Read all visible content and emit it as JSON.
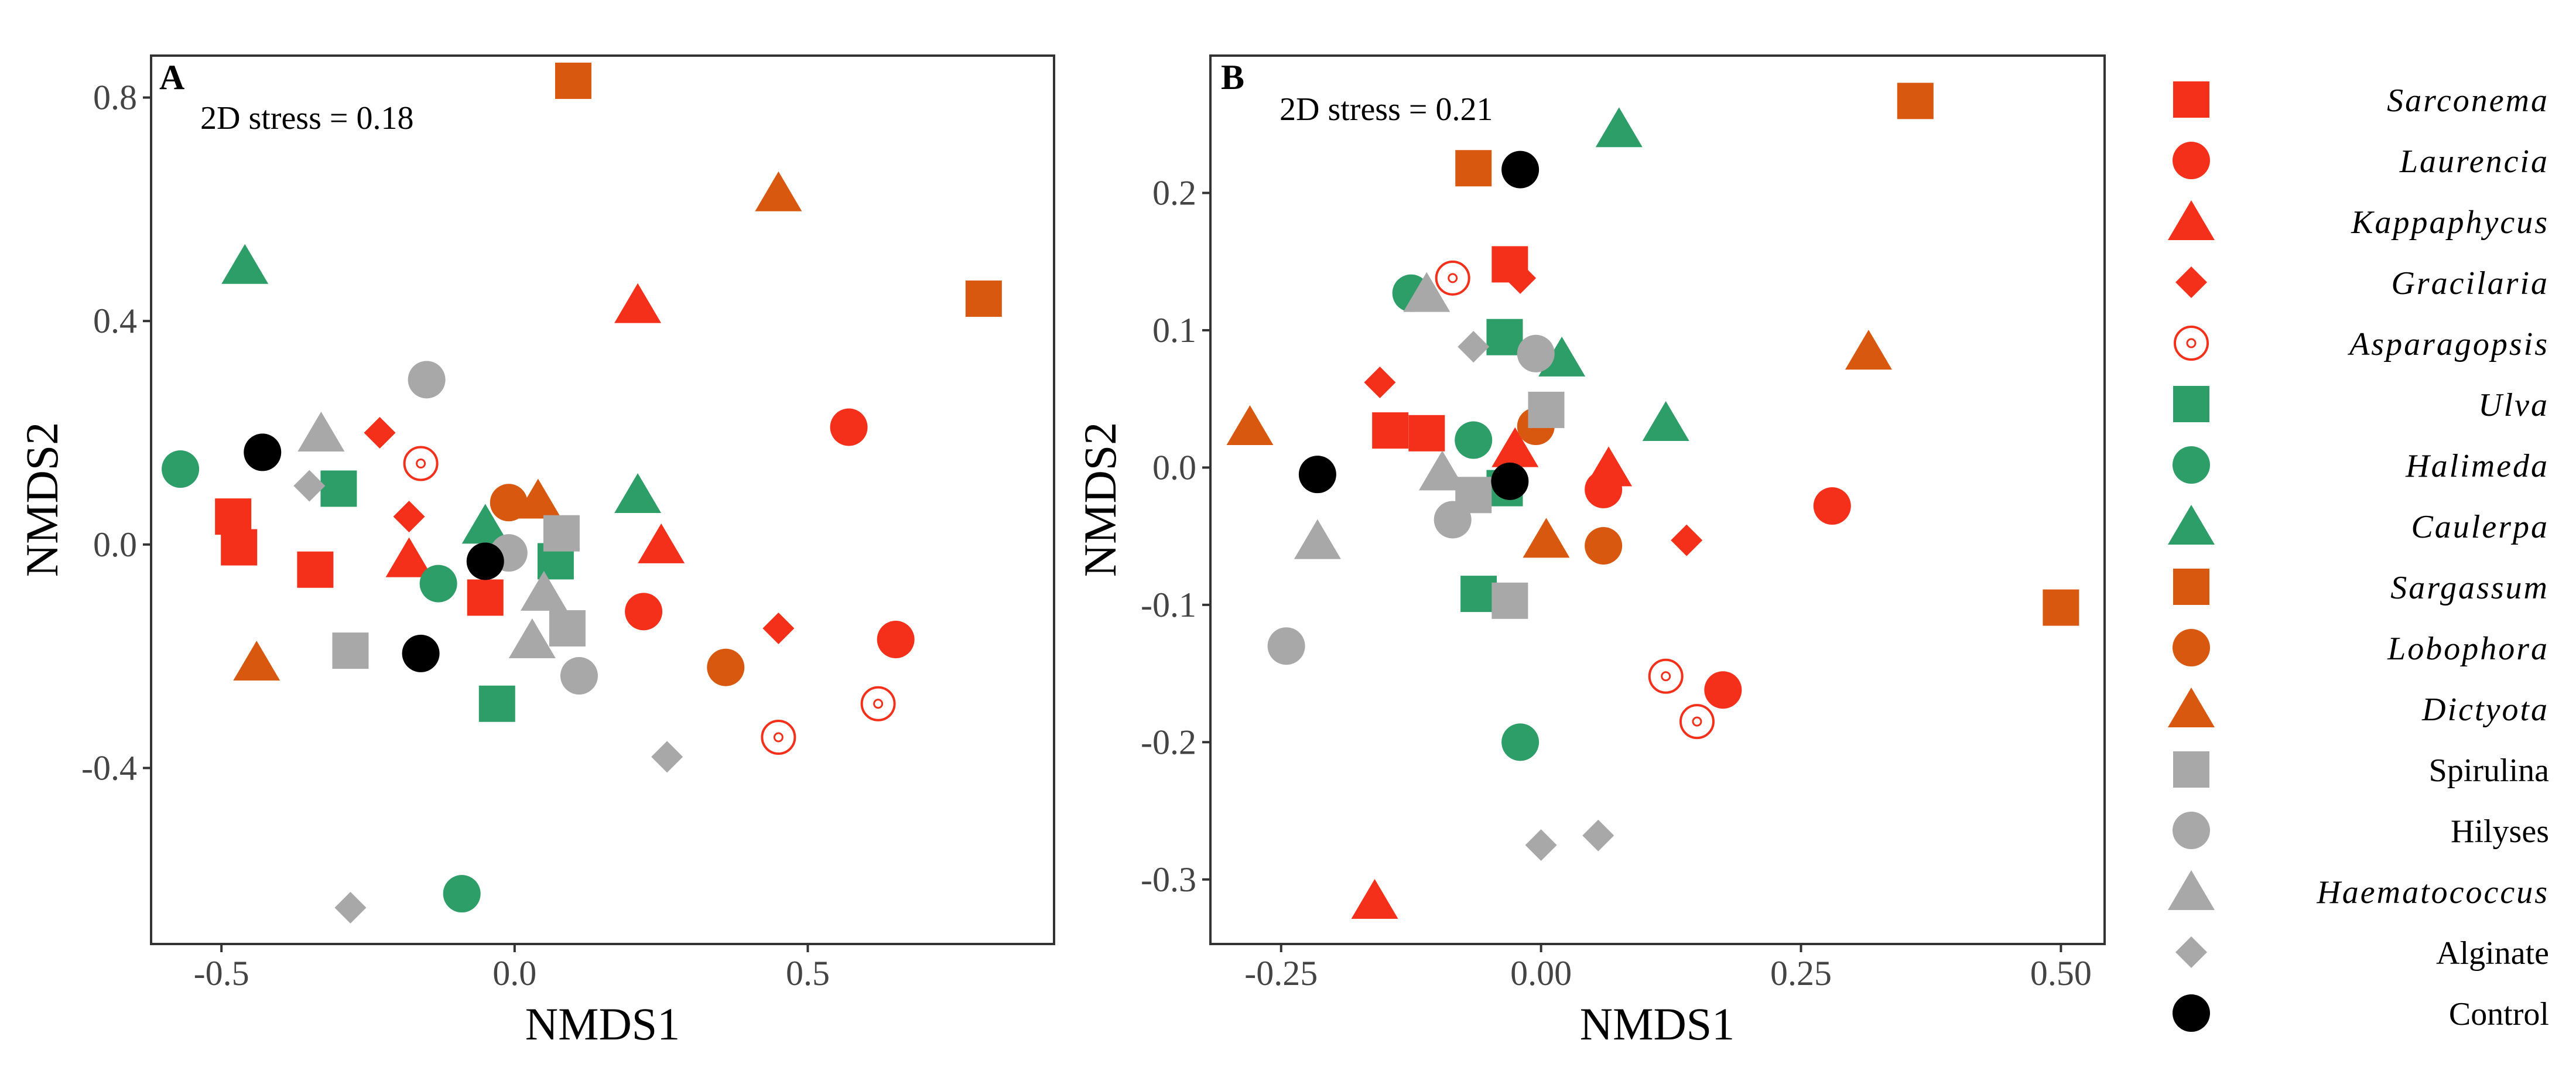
{
  "colors": {
    "red": "#F5301A",
    "green": "#2E9E68",
    "orange": "#D9580F",
    "grey": "#A8A8A8",
    "black": "#000000",
    "frame": "#333333"
  },
  "legend": {
    "entries": [
      {
        "key": "Sarconema",
        "label": "Sarconema",
        "shape": "square",
        "color": "red",
        "italic": true
      },
      {
        "key": "Laurencia",
        "label": "Laurencia",
        "shape": "circle",
        "color": "red",
        "italic": true
      },
      {
        "key": "Kappaphycus",
        "label": "Kappaphycus",
        "shape": "triangle",
        "color": "red",
        "italic": true
      },
      {
        "key": "Gracilaria",
        "label": "Gracilaria",
        "shape": "diamond",
        "color": "red",
        "italic": true
      },
      {
        "key": "Asparagopsis",
        "label": "Asparagopsis",
        "shape": "target",
        "color": "red",
        "italic": true
      },
      {
        "key": "Ulva",
        "label": "Ulva",
        "shape": "square",
        "color": "green",
        "italic": true
      },
      {
        "key": "Halimeda",
        "label": "Halimeda",
        "shape": "circle",
        "color": "green",
        "italic": true
      },
      {
        "key": "Caulerpa",
        "label": "Caulerpa",
        "shape": "triangle",
        "color": "green",
        "italic": true
      },
      {
        "key": "Sargassum",
        "label": "Sargassum",
        "shape": "square",
        "color": "orange",
        "italic": true
      },
      {
        "key": "Lobophora",
        "label": "Lobophora",
        "shape": "circle",
        "color": "orange",
        "italic": true
      },
      {
        "key": "Dictyota",
        "label": "Dictyota",
        "shape": "triangle",
        "color": "orange",
        "italic": true
      },
      {
        "key": "Spirulina",
        "label": "Spirulina",
        "shape": "square",
        "color": "grey",
        "italic": false
      },
      {
        "key": "Hilyses",
        "label": "Hilyses",
        "shape": "circle",
        "color": "grey",
        "italic": false
      },
      {
        "key": "Haematococcus",
        "label": "Haematococcus",
        "shape": "triangle",
        "color": "grey",
        "italic": true
      },
      {
        "key": "Alginate",
        "label": "Alginate",
        "shape": "diamond",
        "color": "grey",
        "italic": false
      },
      {
        "key": "Control",
        "label": "Control",
        "shape": "circle",
        "color": "black",
        "italic": false
      }
    ]
  },
  "chart_data": [
    {
      "type": "scatter",
      "panel_label": "A",
      "annotation": "2D stress = 0.18",
      "xlabel": "NMDS1",
      "ylabel": "NMDS2",
      "xlim": [
        -0.62,
        0.92
      ],
      "ylim": [
        -0.715,
        0.875
      ],
      "xticks": [
        -0.5,
        0.0,
        0.5
      ],
      "xtick_labels": [
        "-0.5",
        "0.0",
        "0.5"
      ],
      "yticks": [
        -0.4,
        0.0,
        0.4,
        0.8
      ],
      "ytick_labels": [
        "-0.4",
        "0.0",
        "0.4",
        "0.8"
      ],
      "series": [
        {
          "name": "Sarconema",
          "points": [
            [
              -0.48,
              0.05
            ],
            [
              -0.47,
              -0.005
            ],
            [
              -0.34,
              -0.045
            ],
            [
              -0.05,
              -0.095
            ]
          ]
        },
        {
          "name": "Laurencia",
          "points": [
            [
              0.57,
              0.21
            ],
            [
              0.22,
              -0.12
            ],
            [
              0.65,
              -0.17
            ]
          ]
        },
        {
          "name": "Kappaphycus",
          "points": [
            [
              0.21,
              0.43
            ],
            [
              0.25,
              -0.0
            ],
            [
              -0.18,
              -0.025
            ]
          ]
        },
        {
          "name": "Gracilaria",
          "points": [
            [
              -0.23,
              0.2
            ],
            [
              -0.18,
              0.05
            ],
            [
              0.45,
              -0.15
            ]
          ]
        },
        {
          "name": "Asparagopsis",
          "points": [
            [
              -0.16,
              0.145
            ],
            [
              0.62,
              -0.285
            ],
            [
              0.45,
              -0.345
            ]
          ]
        },
        {
          "name": "Ulva",
          "points": [
            [
              -0.3,
              0.1
            ],
            [
              0.07,
              -0.03
            ],
            [
              -0.03,
              -0.285
            ]
          ]
        },
        {
          "name": "Halimeda",
          "points": [
            [
              -0.57,
              0.135
            ],
            [
              -0.13,
              -0.07
            ],
            [
              -0.09,
              -0.625
            ]
          ]
        },
        {
          "name": "Caulerpa",
          "points": [
            [
              -0.46,
              0.5
            ],
            [
              0.21,
              0.09
            ],
            [
              -0.05,
              0.035
            ]
          ]
        },
        {
          "name": "Sargassum",
          "points": [
            [
              0.1,
              0.83
            ],
            [
              0.8,
              0.44
            ]
          ]
        },
        {
          "name": "Lobophora",
          "points": [
            [
              -0.01,
              0.075
            ],
            [
              0.36,
              -0.22
            ]
          ]
        },
        {
          "name": "Dictyota",
          "points": [
            [
              0.45,
              0.63
            ],
            [
              0.04,
              0.08
            ],
            [
              -0.44,
              -0.21
            ]
          ]
        },
        {
          "name": "Spirulina",
          "points": [
            [
              0.08,
              0.02
            ],
            [
              0.09,
              -0.15
            ],
            [
              -0.28,
              -0.19
            ]
          ]
        },
        {
          "name": "Hilyses",
          "points": [
            [
              -0.15,
              0.295
            ],
            [
              0.11,
              -0.235
            ],
            [
              -0.01,
              -0.015
            ]
          ]
        },
        {
          "name": "Haematococcus",
          "points": [
            [
              -0.33,
              0.2
            ],
            [
              0.05,
              -0.085
            ],
            [
              0.03,
              -0.17
            ]
          ]
        },
        {
          "name": "Alginate",
          "points": [
            [
              -0.35,
              0.105
            ],
            [
              0.26,
              -0.38
            ],
            [
              -0.28,
              -0.65
            ]
          ]
        },
        {
          "name": "Control",
          "points": [
            [
              -0.43,
              0.165
            ],
            [
              -0.05,
              -0.03
            ],
            [
              -0.16,
              -0.195
            ]
          ]
        }
      ]
    },
    {
      "type": "scatter",
      "panel_label": "B",
      "annotation": "2D stress = 0.21",
      "xlabel": "NMDS1",
      "ylabel": "NMDS2",
      "xlim": [
        -0.318,
        0.542
      ],
      "ylim": [
        -0.347,
        0.3
      ],
      "xticks": [
        -0.25,
        0.0,
        0.25,
        0.5
      ],
      "xtick_labels": [
        "-0.25",
        "0.00",
        "0.25",
        "0.50"
      ],
      "yticks": [
        -0.3,
        -0.2,
        -0.1,
        0.0,
        0.1,
        0.2
      ],
      "ytick_labels": [
        "-0.3",
        "-0.2",
        "-0.1",
        "0.0",
        "0.1",
        "0.2"
      ],
      "series": [
        {
          "name": "Sarconema",
          "points": [
            [
              -0.03,
              0.148
            ],
            [
              -0.145,
              0.027
            ],
            [
              -0.11,
              0.025
            ]
          ]
        },
        {
          "name": "Laurencia",
          "points": [
            [
              0.28,
              -0.028
            ],
            [
              0.175,
              -0.162
            ],
            [
              0.06,
              -0.016
            ]
          ]
        },
        {
          "name": "Kappaphycus",
          "points": [
            [
              -0.16,
              -0.315
            ],
            [
              -0.025,
              0.014
            ],
            [
              0.065,
              0.0
            ]
          ]
        },
        {
          "name": "Gracilaria",
          "points": [
            [
              -0.155,
              0.062
            ],
            [
              -0.02,
              0.138
            ],
            [
              0.14,
              -0.053
            ]
          ]
        },
        {
          "name": "Asparagopsis",
          "points": [
            [
              -0.085,
              0.138
            ],
            [
              0.12,
              -0.152
            ],
            [
              0.15,
              -0.185
            ]
          ]
        },
        {
          "name": "Ulva",
          "points": [
            [
              -0.035,
              0.095
            ],
            [
              -0.035,
              -0.015
            ],
            [
              -0.06,
              -0.092
            ]
          ]
        },
        {
          "name": "Halimeda",
          "points": [
            [
              -0.125,
              0.127
            ],
            [
              -0.065,
              0.02
            ],
            [
              -0.02,
              -0.2
            ]
          ]
        },
        {
          "name": "Caulerpa",
          "points": [
            [
              0.075,
              0.247
            ],
            [
              0.02,
              0.08
            ],
            [
              0.12,
              0.033
            ]
          ]
        },
        {
          "name": "Sargassum",
          "points": [
            [
              -0.065,
              0.218
            ],
            [
              0.36,
              0.267
            ],
            [
              0.5,
              -0.102
            ]
          ]
        },
        {
          "name": "Lobophora",
          "points": [
            [
              -0.005,
              0.03
            ],
            [
              0.06,
              -0.057
            ]
          ]
        },
        {
          "name": "Dictyota",
          "points": [
            [
              -0.28,
              0.03
            ],
            [
              0.315,
              0.085
            ],
            [
              0.005,
              -0.052
            ]
          ]
        },
        {
          "name": "Spirulina",
          "points": [
            [
              0.005,
              0.042
            ],
            [
              -0.065,
              -0.02
            ],
            [
              -0.03,
              -0.097
            ]
          ]
        },
        {
          "name": "Hilyses",
          "points": [
            [
              -0.005,
              0.083
            ],
            [
              -0.085,
              -0.038
            ],
            [
              -0.245,
              -0.13
            ]
          ]
        },
        {
          "name": "Haematococcus",
          "points": [
            [
              -0.11,
              0.127
            ],
            [
              -0.095,
              -0.003
            ],
            [
              -0.215,
              -0.053
            ]
          ]
        },
        {
          "name": "Alginate",
          "points": [
            [
              -0.065,
              0.088
            ],
            [
              0.0,
              -0.275
            ],
            [
              0.055,
              -0.268
            ]
          ]
        },
        {
          "name": "Control",
          "points": [
            [
              -0.02,
              0.217
            ],
            [
              -0.215,
              -0.005
            ],
            [
              -0.03,
              -0.01
            ]
          ]
        }
      ]
    }
  ]
}
